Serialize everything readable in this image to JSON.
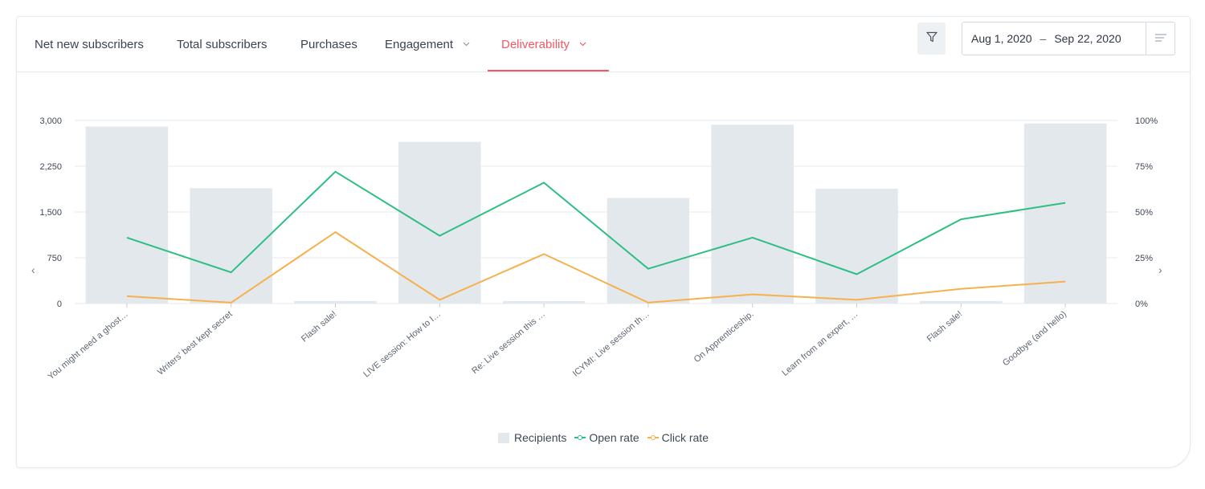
{
  "tabs": [
    {
      "label": "Net new subscribers"
    },
    {
      "label": "Total subscribers"
    },
    {
      "label": "Purchases"
    },
    {
      "label": "Engagement",
      "dropdown": "chevron-down-icon"
    },
    {
      "label": "Deliverability",
      "dropdown": "chevron-down-icon",
      "active": true
    }
  ],
  "toolbar": {
    "filter_icon": "filter-icon",
    "date_start": "Aug 1, 2020",
    "date_separator": "–",
    "date_end": "Sep 22, 2020",
    "menu_icon": "lines-menu-icon"
  },
  "nav": {
    "prev": "‹",
    "next": "›"
  },
  "colors": {
    "accent": "#ef5a63",
    "recipients": "#e3e8ed",
    "open_rate": "#2dbf82",
    "click_rate": "#f6b04d"
  },
  "chart_data": {
    "type": "bar",
    "categories": [
      "You might need a ghost…",
      "Writers' best kept secret",
      "Flash sale!",
      "LIVE session: How to I…",
      "Re: Live session this …",
      "ICYMI: Live session th…",
      "On Apprenticeship.",
      "Learn from an expert, …",
      "Flash sale!",
      "Goodbye (and hello)"
    ],
    "left_axis": {
      "ticks": [
        "0",
        "750",
        "1,500",
        "2,250",
        "3,000"
      ],
      "ylim": [
        0,
        3000
      ]
    },
    "right_axis": {
      "ticks": [
        "0%",
        "25%",
        "50%",
        "75%",
        "100%"
      ],
      "ylim": [
        0,
        100
      ]
    },
    "series": [
      {
        "name": "Recipients",
        "kind": "bar",
        "axis": "left",
        "values": [
          2900,
          1890,
          40,
          2650,
          30,
          1730,
          2930,
          1880,
          40,
          2950
        ]
      },
      {
        "name": "Open rate",
        "kind": "line",
        "axis": "right",
        "values": [
          36,
          17,
          72,
          37,
          66,
          19,
          36,
          16,
          46,
          55
        ]
      },
      {
        "name": "Click rate",
        "kind": "line",
        "axis": "right",
        "values": [
          4,
          0.5,
          39,
          2,
          27,
          0.5,
          5,
          2,
          8,
          12
        ]
      }
    ],
    "grid": true,
    "legend_position": "bottom-center"
  }
}
